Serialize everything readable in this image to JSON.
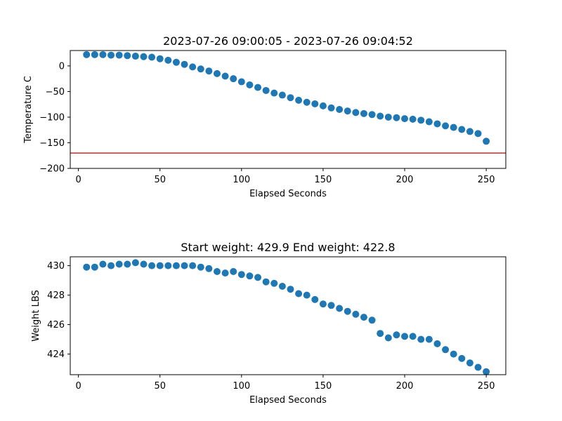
{
  "chart_data": [
    {
      "type": "scatter",
      "title": "2023-07-26 09:00:05 - 2023-07-26 09:04:52",
      "xlabel": "Elapsed Seconds",
      "ylabel": "Temperature C",
      "xlim": [
        -5,
        262
      ],
      "ylim": [
        -200,
        30
      ],
      "xticks": [
        0,
        50,
        100,
        150,
        200,
        250
      ],
      "xtick_labels": [
        "0",
        "50",
        "100",
        "150",
        "200",
        "250"
      ],
      "yticks": [
        0,
        -50,
        -100,
        -150,
        -200
      ],
      "ytick_labels": [
        "0",
        "−50",
        "−100",
        "−150",
        "−200"
      ],
      "grid": false,
      "marker_color": "#1f77b4",
      "reference_line": {
        "y": -170,
        "color": "#d62728"
      },
      "x": [
        5,
        10,
        15,
        20,
        25,
        30,
        35,
        40,
        45,
        50,
        55,
        60,
        65,
        70,
        75,
        80,
        85,
        90,
        95,
        100,
        105,
        110,
        115,
        120,
        125,
        130,
        135,
        140,
        145,
        150,
        155,
        160,
        165,
        170,
        175,
        180,
        185,
        190,
        195,
        200,
        205,
        210,
        215,
        220,
        225,
        230,
        235,
        240,
        245,
        250
      ],
      "y": [
        22,
        22,
        22,
        21,
        21,
        20,
        19,
        18,
        17,
        14,
        11,
        7,
        3,
        -2,
        -6,
        -10,
        -15,
        -20,
        -25,
        -31,
        -37,
        -42,
        -48,
        -53,
        -57,
        -62,
        -67,
        -71,
        -74,
        -78,
        -82,
        -85,
        -88,
        -91,
        -93,
        -95,
        -98,
        -100,
        -101,
        -103,
        -104,
        -106,
        -109,
        -113,
        -117,
        -120,
        -124,
        -128,
        -132,
        -147
      ]
    },
    {
      "type": "scatter",
      "title": "Start weight: 429.9 End weight: 422.8",
      "xlabel": "Elapsed Seconds",
      "ylabel": "Weight LBS",
      "xlim": [
        -5,
        262
      ],
      "ylim": [
        422.6,
        430.6
      ],
      "xticks": [
        0,
        50,
        100,
        150,
        200,
        250
      ],
      "xtick_labels": [
        "0",
        "50",
        "100",
        "150",
        "200",
        "250"
      ],
      "yticks": [
        424,
        426,
        428,
        430
      ],
      "ytick_labels": [
        "424",
        "426",
        "428",
        "430"
      ],
      "grid": false,
      "marker_color": "#1f77b4",
      "x": [
        5,
        10,
        15,
        20,
        25,
        30,
        35,
        40,
        45,
        50,
        55,
        60,
        65,
        70,
        75,
        80,
        85,
        90,
        95,
        100,
        105,
        110,
        115,
        120,
        125,
        130,
        135,
        140,
        145,
        150,
        155,
        160,
        165,
        170,
        175,
        180,
        185,
        190,
        195,
        200,
        205,
        210,
        215,
        220,
        225,
        230,
        235,
        240,
        245,
        250
      ],
      "y": [
        429.9,
        429.9,
        430.1,
        430.0,
        430.1,
        430.1,
        430.2,
        430.1,
        430.0,
        430.0,
        430.0,
        430.0,
        430.0,
        430.0,
        429.9,
        429.8,
        429.6,
        429.5,
        429.6,
        429.4,
        429.3,
        429.2,
        428.9,
        428.8,
        428.6,
        428.4,
        428.1,
        428.0,
        427.7,
        427.4,
        427.3,
        427.1,
        426.9,
        426.7,
        426.5,
        426.3,
        425.4,
        425.1,
        425.3,
        425.2,
        425.2,
        425.0,
        425.0,
        424.7,
        424.3,
        424.0,
        423.7,
        423.4,
        423.1,
        422.8
      ]
    }
  ]
}
